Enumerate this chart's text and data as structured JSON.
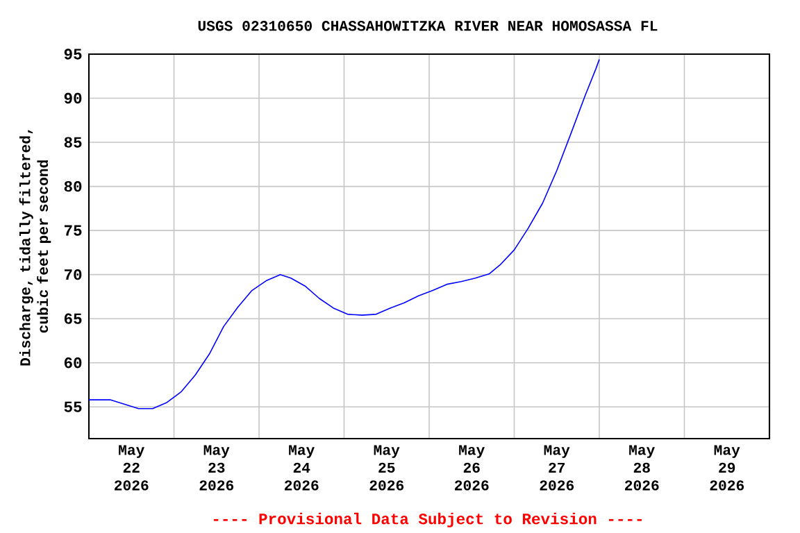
{
  "chart_data": {
    "type": "line",
    "title": "USGS 02310650 CHASSAHOWITZKA RIVER NEAR HOMOSASSA FL",
    "ylabel": "Discharge, tidally filtered, cubic feet per second",
    "annotations": [
      "---- Provisional Data Subject to Revision ----"
    ],
    "x": [
      "2026-05-22T00:00",
      "2026-05-22T06:00",
      "2026-05-22T14:00",
      "2026-05-22T18:00",
      "2026-05-22T22:00",
      "2026-05-23T02:00",
      "2026-05-23T06:00",
      "2026-05-23T10:00",
      "2026-05-23T14:00",
      "2026-05-23T18:00",
      "2026-05-23T22:00",
      "2026-05-24T02:00",
      "2026-05-24T06:00",
      "2026-05-24T09:00",
      "2026-05-24T13:00",
      "2026-05-24T17:00",
      "2026-05-24T21:00",
      "2026-05-25T01:00",
      "2026-05-25T05:00",
      "2026-05-25T09:00",
      "2026-05-25T13:00",
      "2026-05-25T17:00",
      "2026-05-25T21:00",
      "2026-05-26T01:00",
      "2026-05-26T05:00",
      "2026-05-26T09:00",
      "2026-05-26T13:00",
      "2026-05-26T17:00",
      "2026-05-26T20:00",
      "2026-05-27T00:00",
      "2026-05-27T04:00",
      "2026-05-27T08:00",
      "2026-05-27T12:00",
      "2026-05-27T16:00",
      "2026-05-27T20:00",
      "2026-05-27T23:00",
      "2026-05-28T00:00"
    ],
    "series": [
      {
        "color": "#0000ff",
        "values": [
          55.8,
          55.8,
          54.8,
          54.8,
          55.5,
          56.7,
          58.6,
          61.0,
          64.1,
          66.3,
          68.2,
          69.3,
          70.0,
          69.6,
          68.7,
          67.3,
          66.2,
          65.5,
          65.4,
          65.5,
          66.2,
          66.8,
          67.6,
          68.2,
          68.9,
          69.2,
          69.6,
          70.1,
          71.1,
          72.8,
          75.3,
          78.1,
          81.8,
          86.0,
          90.3,
          93.3,
          94.4
        ]
      }
    ],
    "xlim": [
      "2026-05-22",
      "2026-05-30"
    ],
    "xticks": [
      {
        "value": "2026-05-23",
        "label": null
      },
      {
        "value": "2026-05-24",
        "label": null
      },
      {
        "value": "2026-05-25",
        "label": null
      },
      {
        "value": "2026-05-26",
        "label": null
      },
      {
        "value": "2026-05-27",
        "label": null
      },
      {
        "value": "2026-05-28",
        "label": null
      },
      {
        "value": "2026-05-29",
        "label": null
      },
      {
        "value": "2026-05-22T12:00",
        "label": "May 22 2026"
      },
      {
        "value": "2026-05-23T12:00",
        "label": "May 23 2026"
      },
      {
        "value": "2026-05-24T12:00",
        "label": "May 24 2026"
      },
      {
        "value": "2026-05-25T12:00",
        "label": "May 25 2026"
      },
      {
        "value": "2026-05-26T12:00",
        "label": "May 26 2026"
      },
      {
        "value": "2026-05-27T12:00",
        "label": "May 27 2026"
      },
      {
        "value": "2026-05-28T12:00",
        "label": "May 28 2026"
      },
      {
        "value": "2026-05-29T12:00",
        "label": "May 29 2026"
      }
    ],
    "ylim": [
      51.4,
      95
    ],
    "yticks": [
      55,
      60,
      65,
      70,
      75,
      80,
      85,
      90,
      95
    ],
    "grid": true,
    "line_style": "solid"
  }
}
